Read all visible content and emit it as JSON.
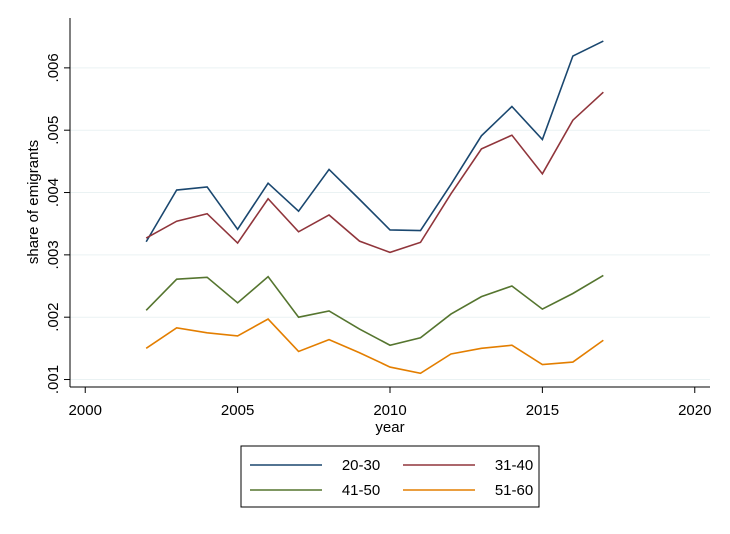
{
  "chart_data": {
    "type": "line",
    "title": "",
    "xlabel": "year",
    "ylabel": "share of emigrants",
    "xlim": [
      1999.5,
      2020.5
    ],
    "ylim": [
      0.00088,
      0.0068
    ],
    "x_ticks": [
      2000,
      2005,
      2010,
      2015,
      2020
    ],
    "x_tick_labels": [
      "2000",
      "2005",
      "2010",
      "2015",
      "2020"
    ],
    "y_ticks": [
      0.001,
      0.002,
      0.003,
      0.004,
      0.005,
      0.006
    ],
    "y_tick_labels": [
      ".001",
      ".002",
      ".003",
      ".004",
      ".005",
      ".006"
    ],
    "grid": "horizontal",
    "legend_position": "bottom",
    "x": [
      2002,
      2003,
      2004,
      2005,
      2006,
      2007,
      2008,
      2009,
      2010,
      2011,
      2012,
      2013,
      2014,
      2015,
      2016,
      2017
    ],
    "series": [
      {
        "name": "20-30",
        "color": "#1a476f",
        "values": [
          0.00321,
          0.00404,
          0.00409,
          0.00341,
          0.00415,
          0.0037,
          0.00437,
          0.00389,
          0.0034,
          0.00339,
          0.00413,
          0.00491,
          0.00538,
          0.00485,
          0.00619,
          0.00643
        ]
      },
      {
        "name": "31-40",
        "color": "#90353b",
        "values": [
          0.00327,
          0.00354,
          0.00366,
          0.00319,
          0.0039,
          0.00337,
          0.00364,
          0.00322,
          0.00304,
          0.0032,
          0.00398,
          0.0047,
          0.00492,
          0.0043,
          0.00516,
          0.00561
        ]
      },
      {
        "name": "41-50",
        "color": "#55752f",
        "values": [
          0.00211,
          0.00261,
          0.00264,
          0.00223,
          0.00265,
          0.002,
          0.0021,
          0.00181,
          0.00155,
          0.00167,
          0.00205,
          0.00233,
          0.0025,
          0.00213,
          0.00238,
          0.00267
        ]
      },
      {
        "name": "51-60",
        "color": "#e37e00",
        "values": [
          0.0015,
          0.00183,
          0.00175,
          0.0017,
          0.00197,
          0.00145,
          0.00164,
          0.00143,
          0.0012,
          0.0011,
          0.00141,
          0.0015,
          0.00155,
          0.00124,
          0.00128,
          0.00163
        ]
      }
    ]
  }
}
